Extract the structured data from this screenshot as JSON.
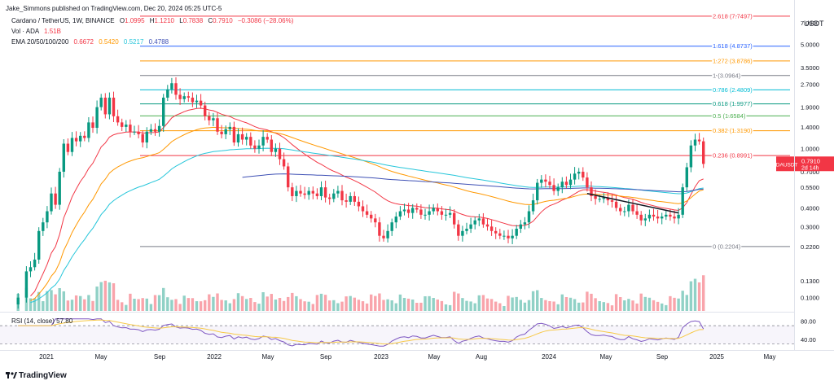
{
  "header": {
    "publisher": "Jake_Simmons published on TradingView.com, Dec 20, 2024 05:25 UTC-5",
    "symbol_line": "Cardano / TetherUS, 1W, BINANCE",
    "ohlc": {
      "o_label": "O",
      "o": "1.0995",
      "h_label": "H",
      "h": "1.1210",
      "l_label": "L",
      "l": "0.7838",
      "c_label": "C",
      "c": "0.7910",
      "change": "−0.3086 (−28.06%)"
    },
    "vol_label": "Vol · ADA",
    "vol_value": "1.51B",
    "ema_label": "EMA 20/50/100/200",
    "ema_values": [
      "0.6672",
      "0.5420",
      "0.5217",
      "0.4788"
    ]
  },
  "axis": {
    "currency": "USDT",
    "price_ticks": [
      "7.0000",
      "5.0000",
      "3.5000",
      "2.7000",
      "1.9000",
      "1.4000",
      "1.0000",
      "0.7000",
      "0.5500",
      "0.4000",
      "0.3000",
      "0.2200",
      "0.1300",
      "0.1000"
    ],
    "rsi_ticks": [
      "80.00",
      "40.00"
    ],
    "time_ticks": [
      "2021",
      "May",
      "Sep",
      "2022",
      "May",
      "Sep",
      "2023",
      "May",
      "Aug",
      "2024",
      "May",
      "Sep",
      "2025",
      "May"
    ]
  },
  "price_tag": {
    "symbol": "ADAUSDT",
    "price": "0.7910",
    "countdown": "2d 14h"
  },
  "rsi_label": "RSI (14, close) 57.80",
  "footer_brand": "TradingView",
  "colors": {
    "up": "#089981",
    "down": "#f23645",
    "ema20": "#f23645",
    "ema50": "#ff9800",
    "ema100": "#26c6da",
    "ema200": "#3f51b5",
    "rsi": "#7e57c2"
  },
  "chart_data": {
    "type": "candlestick",
    "timeframe": "1W",
    "y_scale": "log",
    "ylim": [
      0.09,
      9.0
    ],
    "x_range": [
      "2020-10",
      "2025-07"
    ],
    "fibonacci": [
      {
        "level": "0",
        "value": 0.2204,
        "label": "0 (0.2204)",
        "color": "#787b86"
      },
      {
        "level": "0.236",
        "value": 0.8991,
        "label": "0.236 (0.8991)",
        "color": "#f23645"
      },
      {
        "level": "0.382",
        "value": 1.319,
        "label": "0.382 (1.3190)",
        "color": "#ff9800"
      },
      {
        "level": "0.5",
        "value": 1.6584,
        "label": "0.5 (1.6584)",
        "color": "#4caf50"
      },
      {
        "level": "0.618",
        "value": 1.9977,
        "label": "0.618 (1.9977)",
        "color": "#089981"
      },
      {
        "level": "0.786",
        "value": 2.4809,
        "label": "0.786 (2.4809)",
        "color": "#00bcd4"
      },
      {
        "level": "1",
        "value": 3.0964,
        "label": "1 (3.0964)",
        "color": "#787b86"
      },
      {
        "level": "1.272",
        "value": 3.8786,
        "label": "1.272 (3.8786)",
        "color": "#ff9800"
      },
      {
        "level": "1.618",
        "value": 4.8737,
        "label": "1.618 (4.8737)",
        "color": "#2962ff"
      },
      {
        "level": "2.618",
        "value": 7.7497,
        "label": "2.618 (7.7497)",
        "color": "#f23645"
      }
    ],
    "price_path": [
      [
        0,
        0.09
      ],
      [
        2,
        0.1
      ],
      [
        4,
        0.15
      ],
      [
        5,
        0.16
      ],
      [
        6,
        0.18
      ],
      [
        7,
        0.28
      ],
      [
        8,
        0.32
      ],
      [
        9,
        0.38
      ],
      [
        10,
        0.5
      ],
      [
        11,
        0.42
      ],
      [
        12,
        0.7
      ],
      [
        13,
        1.08
      ],
      [
        14,
        0.95
      ],
      [
        15,
        1.18
      ],
      [
        16,
        1.12
      ],
      [
        17,
        1.22
      ],
      [
        18,
        1.18
      ],
      [
        19,
        1.5
      ],
      [
        20,
        1.38
      ],
      [
        21,
        1.9
      ],
      [
        22,
        2.2
      ],
      [
        23,
        1.7
      ],
      [
        24,
        2.2
      ],
      [
        25,
        1.65
      ],
      [
        26,
        1.5
      ],
      [
        27,
        1.4
      ],
      [
        28,
        1.45
      ],
      [
        29,
        1.3
      ],
      [
        30,
        1.3
      ],
      [
        31,
        1.25
      ],
      [
        32,
        1.1
      ],
      [
        33,
        1.3
      ],
      [
        34,
        1.35
      ],
      [
        35,
        1.3
      ],
      [
        36,
        1.42
      ],
      [
        37,
        2.2
      ],
      [
        38,
        2.5
      ],
      [
        39,
        2.75
      ],
      [
        40,
        2.3
      ],
      [
        41,
        2.15
      ],
      [
        42,
        2.25
      ],
      [
        43,
        2.2
      ],
      [
        44,
        2.05
      ],
      [
        45,
        2.1
      ],
      [
        46,
        1.95
      ],
      [
        47,
        1.65
      ],
      [
        48,
        1.55
      ],
      [
        49,
        1.6
      ],
      [
        50,
        1.3
      ],
      [
        51,
        1.25
      ],
      [
        52,
        1.35
      ],
      [
        53,
        1.4
      ],
      [
        54,
        1.1
      ],
      [
        55,
        1.25
      ],
      [
        56,
        1.15
      ],
      [
        57,
        1.2
      ],
      [
        58,
        1.05
      ],
      [
        59,
        1.0
      ],
      [
        60,
        1.05
      ],
      [
        61,
        1.2
      ],
      [
        62,
        1.15
      ],
      [
        63,
        0.95
      ],
      [
        64,
        1.0
      ],
      [
        65,
        0.85
      ],
      [
        66,
        0.76
      ],
      [
        67,
        0.55
      ],
      [
        68,
        0.48
      ],
      [
        69,
        0.52
      ],
      [
        70,
        0.5
      ],
      [
        71,
        0.49
      ],
      [
        72,
        0.52
      ],
      [
        73,
        0.5
      ],
      [
        74,
        0.48
      ],
      [
        75,
        0.55
      ],
      [
        76,
        0.47
      ],
      [
        77,
        0.46
      ],
      [
        78,
        0.5
      ],
      [
        79,
        0.52
      ],
      [
        80,
        0.45
      ],
      [
        81,
        0.44
      ],
      [
        82,
        0.48
      ],
      [
        83,
        0.44
      ],
      [
        84,
        0.41
      ],
      [
        85,
        0.38
      ],
      [
        86,
        0.36
      ],
      [
        87,
        0.34
      ],
      [
        88,
        0.32
      ],
      [
        89,
        0.26
      ],
      [
        90,
        0.25
      ],
      [
        91,
        0.28
      ],
      [
        92,
        0.32
      ],
      [
        93,
        0.35
      ],
      [
        94,
        0.38
      ],
      [
        95,
        0.39
      ],
      [
        96,
        0.37
      ],
      [
        97,
        0.4
      ],
      [
        98,
        0.39
      ],
      [
        99,
        0.36
      ],
      [
        100,
        0.36
      ],
      [
        101,
        0.38
      ],
      [
        102,
        0.4
      ],
      [
        103,
        0.38
      ],
      [
        104,
        0.36
      ],
      [
        105,
        0.36
      ],
      [
        106,
        0.37
      ],
      [
        107,
        0.31
      ],
      [
        108,
        0.26
      ],
      [
        109,
        0.28
      ],
      [
        110,
        0.29
      ],
      [
        111,
        0.31
      ],
      [
        112,
        0.33
      ],
      [
        113,
        0.34
      ],
      [
        114,
        0.31
      ],
      [
        115,
        0.3
      ],
      [
        116,
        0.28
      ],
      [
        117,
        0.27
      ],
      [
        118,
        0.26
      ],
      [
        119,
        0.26
      ],
      [
        120,
        0.25
      ],
      [
        121,
        0.26
      ],
      [
        122,
        0.29
      ],
      [
        123,
        0.31
      ],
      [
        124,
        0.32
      ],
      [
        125,
        0.38
      ],
      [
        126,
        0.45
      ],
      [
        127,
        0.59
      ],
      [
        128,
        0.62
      ],
      [
        129,
        0.6
      ],
      [
        130,
        0.57
      ],
      [
        131,
        0.52
      ],
      [
        132,
        0.55
      ],
      [
        133,
        0.6
      ],
      [
        134,
        0.57
      ],
      [
        135,
        0.62
      ],
      [
        136,
        0.68
      ],
      [
        137,
        0.7
      ],
      [
        138,
        0.64
      ],
      [
        139,
        0.55
      ],
      [
        140,
        0.48
      ],
      [
        141,
        0.46
      ],
      [
        142,
        0.46
      ],
      [
        143,
        0.47
      ],
      [
        144,
        0.45
      ],
      [
        145,
        0.44
      ],
      [
        146,
        0.4
      ],
      [
        147,
        0.38
      ],
      [
        148,
        0.38
      ],
      [
        149,
        0.42
      ],
      [
        150,
        0.38
      ],
      [
        151,
        0.36
      ],
      [
        152,
        0.33
      ],
      [
        153,
        0.34
      ],
      [
        154,
        0.36
      ],
      [
        155,
        0.35
      ],
      [
        156,
        0.34
      ],
      [
        157,
        0.35
      ],
      [
        158,
        0.36
      ],
      [
        159,
        0.35
      ],
      [
        160,
        0.34
      ],
      [
        161,
        0.36
      ],
      [
        162,
        0.55
      ],
      [
        163,
        0.75
      ],
      [
        164,
        1.05
      ],
      [
        165,
        1.15
      ],
      [
        166,
        1.12
      ],
      [
        167,
        0.79
      ]
    ],
    "trendline": [
      [
        139,
        0.5
      ],
      [
        161,
        0.37
      ]
    ],
    "rsi_ylim": [
      20,
      90
    ],
    "rsi_last": 57.8,
    "volume_max_label": "1.51B"
  }
}
